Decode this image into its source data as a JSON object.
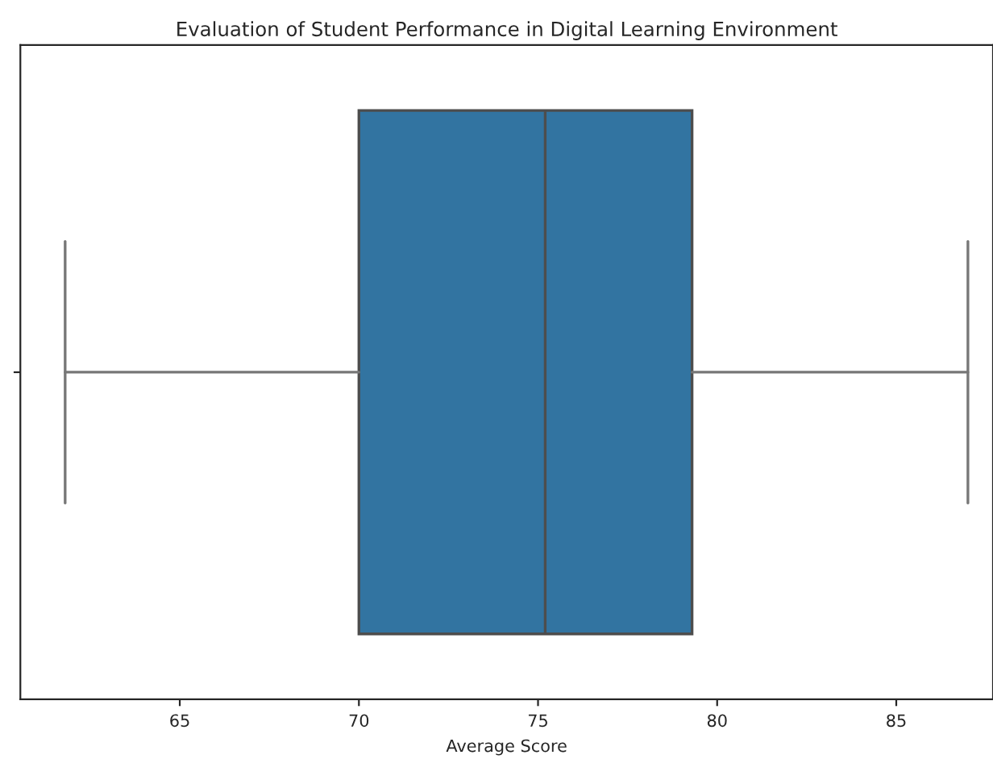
{
  "chart_data": {
    "type": "box",
    "title": "Evaluation of Student Performance in Digital Learning Environment",
    "xlabel": "Average Score",
    "orientation": "horizontal",
    "categories": [
      null
    ],
    "boxes": [
      {
        "low": 61.8,
        "q1": 70.0,
        "median": 75.2,
        "q3": 79.3,
        "high": 87.0
      }
    ],
    "color": "#3274a1",
    "xlim": [
      60.55,
      87.7
    ],
    "xticks": [
      65,
      70,
      75,
      80,
      85
    ]
  }
}
